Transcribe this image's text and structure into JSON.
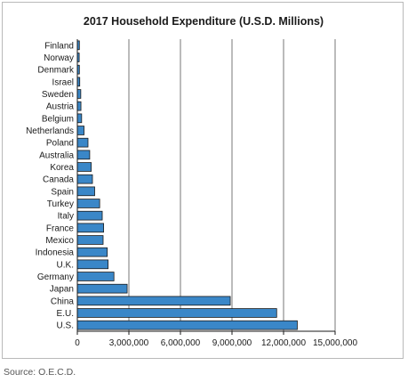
{
  "chart_data": {
    "type": "bar",
    "orientation": "horizontal",
    "title": "2017 Household Expenditure (U.S.D. Millions)",
    "categories": [
      "Finland",
      "Norway",
      "Denmark",
      "Israel",
      "Sweden",
      "Austria",
      "Belgium",
      "Netherlands",
      "Poland",
      "Australia",
      "Korea",
      "Canada",
      "Spain",
      "Turkey",
      "Italy",
      "France",
      "Mexico",
      "Indonesia",
      "U.K.",
      "Germany",
      "Japan",
      "China",
      "E.U.",
      "U.S."
    ],
    "values": [
      120000,
      110000,
      120000,
      140000,
      200000,
      210000,
      250000,
      390000,
      620000,
      720000,
      810000,
      880000,
      1010000,
      1300000,
      1450000,
      1530000,
      1500000,
      1740000,
      1790000,
      2130000,
      2900000,
      8900000,
      11600000,
      12800000
    ],
    "xlim": [
      0,
      15000000
    ],
    "xticks": [
      0,
      3000000,
      6000000,
      9000000,
      12000000,
      15000000
    ],
    "xtick_labels": [
      "0",
      "3,000,000",
      "6,000,000",
      "9,000,000",
      "12,000,000",
      "15,000,000"
    ],
    "grid": "vertical",
    "bar_color": "#3a87c8",
    "bar_edge_color": "#1a1a1a"
  },
  "source": "Source: O.E.C.D."
}
